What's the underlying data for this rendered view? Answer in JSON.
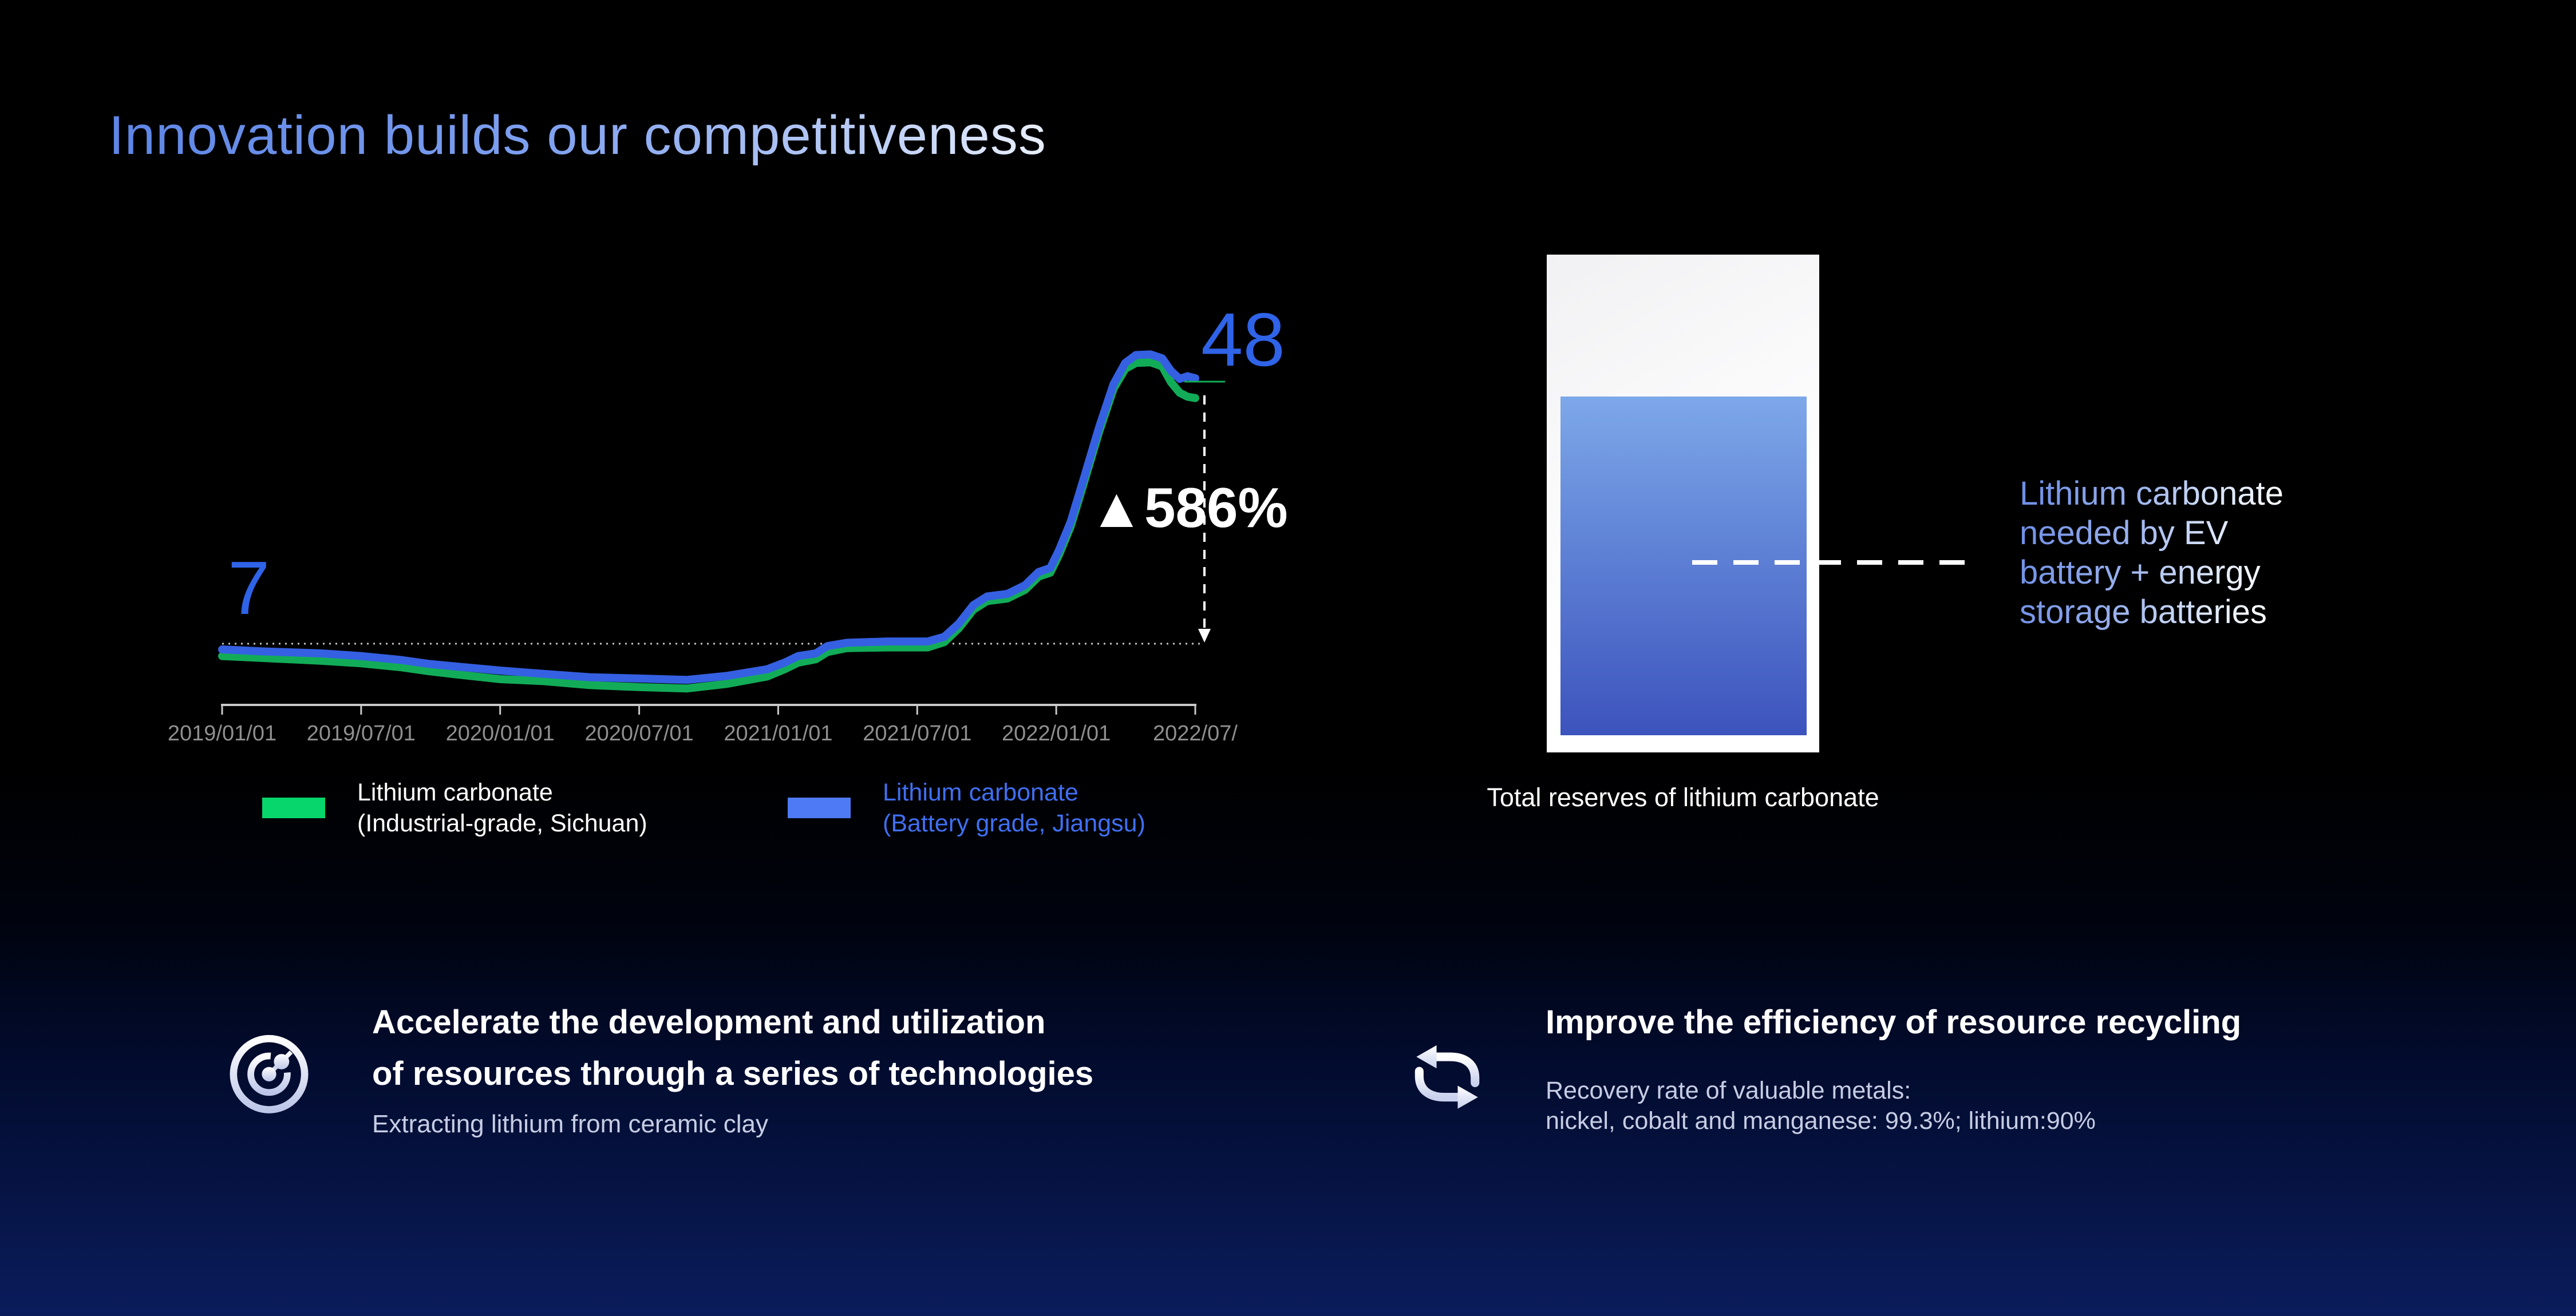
{
  "title": "Innovation builds our competitiveness",
  "chart_data": {
    "type": "line",
    "x_ticks": [
      "2019/01/01",
      "2019/07/01",
      "2020/01/01",
      "2020/07/01",
      "2021/01/01",
      "2021/07/01",
      "2022/01/01",
      "2022/07/"
    ],
    "start_label": "7",
    "end_label": "48",
    "change_label": "▲586%",
    "start_value": 7,
    "end_value": 48,
    "legend_position": "bottom",
    "grid": false,
    "series": [
      {
        "name": "Lithium carbonate (Industrial-grade, Sichuan)",
        "legend_label": "Lithium carbonate\n(Industrial-grade, Sichuan)",
        "color": "#12AC58",
        "swatch": "#06D66C",
        "label_color": "#FFFFFF",
        "points": [
          [
            0,
            6.0
          ],
          [
            0.042,
            5.7
          ],
          [
            0.101,
            5.3
          ],
          [
            0.143,
            4.9
          ],
          [
            0.184,
            4.3
          ],
          [
            0.213,
            3.7
          ],
          [
            0.242,
            3.2
          ],
          [
            0.286,
            2.5
          ],
          [
            0.331,
            2.2
          ],
          [
            0.378,
            1.6
          ],
          [
            0.429,
            1.3
          ],
          [
            0.478,
            1.1
          ],
          [
            0.519,
            1.8
          ],
          [
            0.56,
            2.9
          ],
          [
            0.578,
            4.0
          ],
          [
            0.592,
            5.0
          ],
          [
            0.61,
            5.5
          ],
          [
            0.622,
            6.6
          ],
          [
            0.642,
            7.2
          ],
          [
            0.684,
            7.3
          ],
          [
            0.725,
            7.3
          ],
          [
            0.742,
            8.1
          ],
          [
            0.757,
            10.2
          ],
          [
            0.772,
            13.0
          ],
          [
            0.786,
            14.3
          ],
          [
            0.807,
            14.7
          ],
          [
            0.825,
            16.0
          ],
          [
            0.839,
            18.0
          ],
          [
            0.851,
            18.6
          ],
          [
            0.86,
            21.3
          ],
          [
            0.872,
            25.6
          ],
          [
            0.886,
            32.4
          ],
          [
            0.901,
            39.8
          ],
          [
            0.916,
            46.4
          ],
          [
            0.928,
            49.4
          ],
          [
            0.939,
            50.3
          ],
          [
            0.954,
            50.4
          ],
          [
            0.966,
            49.8
          ],
          [
            0.975,
            47.4
          ],
          [
            0.984,
            45.8
          ],
          [
            0.992,
            45.2
          ],
          [
            1,
            45.0
          ]
        ]
      },
      {
        "name": "Lithium carbonate (Battery grade, Jiangsu)",
        "legend_label": "Lithium carbonate\n(Battery grade, Jiangsu)",
        "color": "#3560E2",
        "swatch": "#4E7BF5",
        "label_color": "#3F6FF2",
        "points": [
          [
            0,
            7.0
          ],
          [
            0.042,
            6.7
          ],
          [
            0.101,
            6.4
          ],
          [
            0.143,
            6.0
          ],
          [
            0.184,
            5.4
          ],
          [
            0.213,
            4.8
          ],
          [
            0.242,
            4.4
          ],
          [
            0.286,
            3.8
          ],
          [
            0.331,
            3.3
          ],
          [
            0.378,
            2.8
          ],
          [
            0.429,
            2.6
          ],
          [
            0.478,
            2.4
          ],
          [
            0.519,
            3.0
          ],
          [
            0.56,
            4.0
          ],
          [
            0.578,
            5.0
          ],
          [
            0.592,
            6.0
          ],
          [
            0.61,
            6.4
          ],
          [
            0.622,
            7.5
          ],
          [
            0.642,
            8.0
          ],
          [
            0.684,
            8.2
          ],
          [
            0.725,
            8.2
          ],
          [
            0.742,
            8.9
          ],
          [
            0.757,
            10.9
          ],
          [
            0.772,
            13.7
          ],
          [
            0.786,
            15.0
          ],
          [
            0.807,
            15.4
          ],
          [
            0.825,
            16.7
          ],
          [
            0.839,
            18.7
          ],
          [
            0.851,
            19.3
          ],
          [
            0.86,
            22.0
          ],
          [
            0.872,
            26.3
          ],
          [
            0.886,
            33.1
          ],
          [
            0.901,
            40.5
          ],
          [
            0.916,
            47.1
          ],
          [
            0.928,
            50.3
          ],
          [
            0.939,
            51.5
          ],
          [
            0.954,
            51.6
          ],
          [
            0.966,
            51.0
          ],
          [
            0.975,
            49.1
          ],
          [
            0.984,
            47.9
          ],
          [
            0.992,
            48.3
          ],
          [
            1,
            48.0
          ]
        ]
      }
    ],
    "layout": {
      "x0": 388,
      "x1": 2088,
      "axis_y": 1232,
      "baseline_y": 1125,
      "y_start": 1135,
      "y_end": 661,
      "arrow_x": 2104
    },
    "colors": {
      "axis": "#C9C9C9",
      "baseline": "#C4C4C4",
      "tick_text": "#8F8F8F",
      "arrow": "#FFFFFF"
    }
  },
  "reserves": {
    "caption": "Total reserves of lithium carbonate",
    "note": "Lithium carbonate\nneeded by EV\nbattery + energy\nstorage batteries"
  },
  "features": [
    {
      "icon": "radar-target-icon",
      "heading": "Accelerate the development and utilization\nof resources through a series of technologies",
      "sub": "Extracting lithium from ceramic clay"
    },
    {
      "icon": "recycle-arrows-icon",
      "heading": "Improve the efficiency of resource recycling",
      "sub": "Recovery rate of valuable metals:\nnickel, cobalt and manganese: 99.3%; lithium:90%"
    }
  ]
}
